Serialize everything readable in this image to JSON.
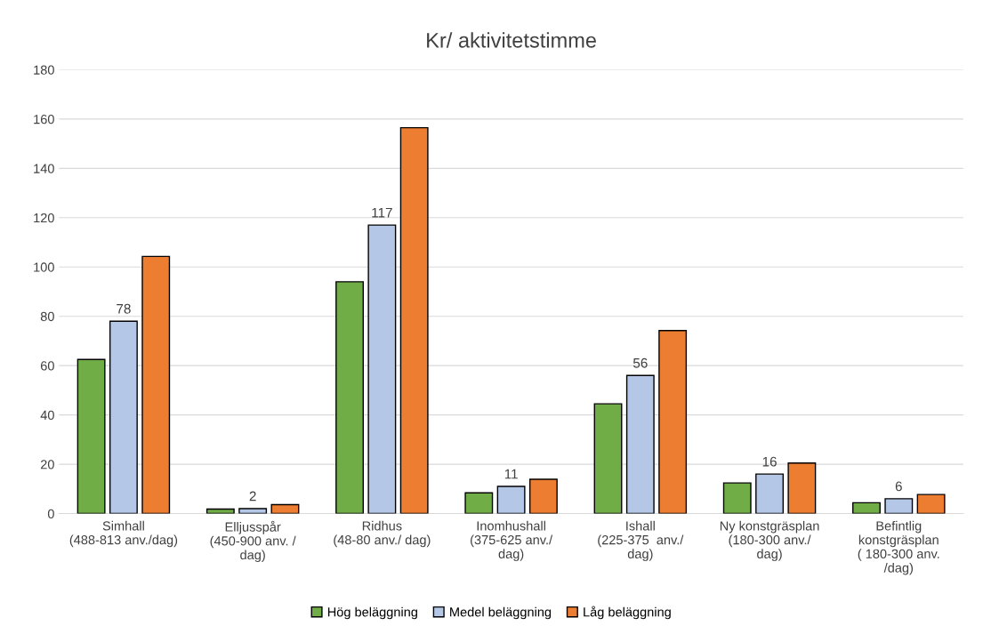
{
  "chart_data": {
    "type": "bar",
    "title": "Kr/ aktivitetstimme",
    "categories": [
      "Simhall\n(488-813 anv./dag)",
      "Elljusspår\n(450-900 anv. /\ndag)",
      "Ridhus\n(48-80 anv./ dag)",
      "Inomhushall\n(375-625 anv./\ndag)",
      "Ishall\n(225-375  anv./\ndag)",
      "Ny konstgräsplan\n(180-300 anv./\ndag)",
      "Befintlig\nkonstgräsplan\n( 180-300 anv.\n/dag)"
    ],
    "series": [
      {
        "name": "Hög beläggning",
        "color": "#70ad47",
        "values": [
          62.5,
          1.8,
          94,
          8.4,
          44.5,
          12.4,
          4.4
        ]
      },
      {
        "name": "Medel beläggning",
        "color": "#b4c7e7",
        "values": [
          78,
          2,
          117,
          11,
          56,
          16,
          6
        ],
        "value_labels": [
          "78",
          "2",
          "117",
          "11",
          "56",
          "16",
          "6"
        ]
      },
      {
        "name": "Låg beläggning",
        "color": "#ed7d31",
        "values": [
          104.3,
          3.6,
          156.5,
          13.9,
          74.2,
          20.5,
          7.7
        ]
      }
    ],
    "ylim": [
      0,
      180
    ],
    "yticks": [
      0,
      20,
      40,
      60,
      80,
      100,
      120,
      140,
      160,
      180
    ],
    "grid": "y",
    "legend": "bottom"
  }
}
